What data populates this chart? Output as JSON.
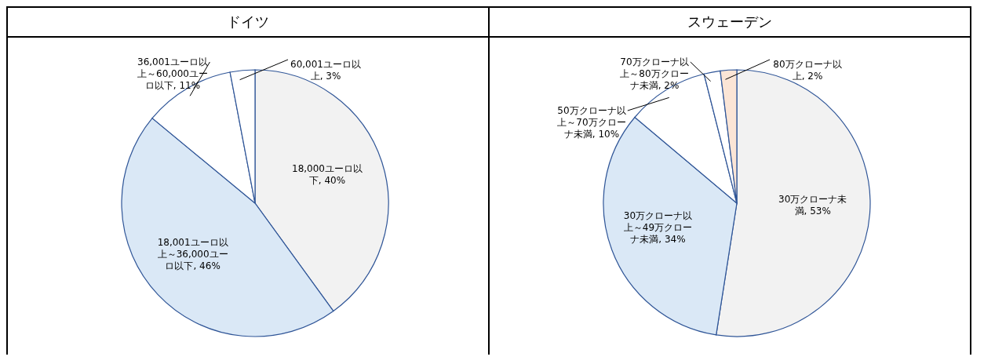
{
  "chart_data": [
    {
      "type": "pie",
      "title": "ドイツ",
      "categories": [
        "18,000ユーロ以下",
        "18,001ユーロ以上～36,000ユーロ以下",
        "36,001ユーロ以上～60,000ユーロ以下",
        "60,001ユーロ以上"
      ],
      "values": [
        40,
        46,
        11,
        3
      ],
      "value_labels": [
        "40%",
        "46%",
        "11%",
        "3%"
      ],
      "colors": [
        "#f2f2f2",
        "#dae8f6",
        "#ffffff",
        "#ffffff"
      ],
      "legend": false
    },
    {
      "type": "pie",
      "title": "スウェーデン",
      "categories": [
        "30万クローナ未満",
        "30万クローナ以上～49万クローナ未満",
        "50万クローナ以上～70万クローナ未満",
        "70万クローナ以上～80万クローナ未満",
        "80万クローナ以上"
      ],
      "values": [
        53,
        34,
        10,
        2,
        2
      ],
      "value_labels": [
        "53%",
        "34%",
        "10%",
        "2%",
        "2%"
      ],
      "colors": [
        "#f2f2f2",
        "#dae8f6",
        "#ffffff",
        "#ffffff",
        "#fbe5d6"
      ],
      "legend": false
    }
  ]
}
